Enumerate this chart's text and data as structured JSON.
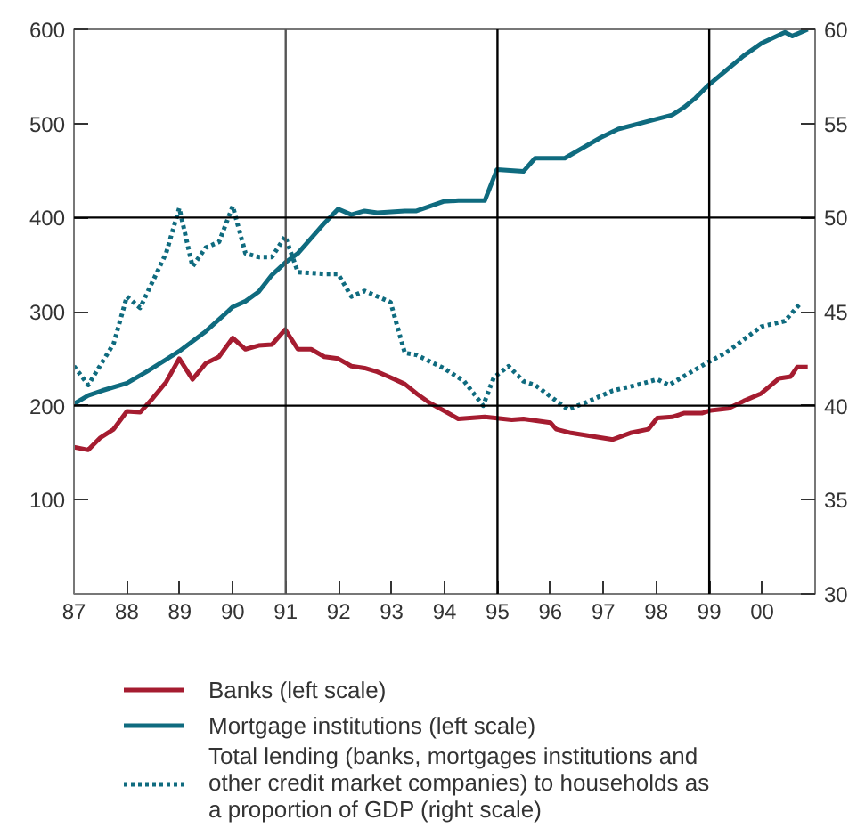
{
  "chart_data": {
    "type": "line",
    "xlim": [
      1987,
      2001
    ],
    "ylim": [
      0,
      600
    ],
    "y2lim": [
      30,
      60
    ],
    "xticks": [
      {
        "value": 1987,
        "label": "87"
      },
      {
        "value": 1988,
        "label": "88"
      },
      {
        "value": 1989,
        "label": "89"
      },
      {
        "value": 1990,
        "label": "90"
      },
      {
        "value": 1991,
        "label": "91"
      },
      {
        "value": 1992,
        "label": "92"
      },
      {
        "value": 1993,
        "label": "93"
      },
      {
        "value": 1994,
        "label": "94"
      },
      {
        "value": 1995,
        "label": "95"
      },
      {
        "value": 1996,
        "label": "96"
      },
      {
        "value": 1997,
        "label": "97"
      },
      {
        "value": 1998,
        "label": "98"
      },
      {
        "value": 1999,
        "label": "99"
      },
      {
        "value": 2000,
        "label": "00"
      }
    ],
    "yticks": [
      100,
      200,
      300,
      400,
      500,
      600
    ],
    "y2ticks": [
      30,
      35,
      40,
      45,
      50,
      55,
      60
    ],
    "grid": false,
    "legend": "bottom",
    "ref_lines": [
      {
        "axis": "x",
        "value": 1991,
        "color": "#555555"
      },
      {
        "axis": "x",
        "value": 1995,
        "color": "#000000"
      },
      {
        "axis": "x",
        "value": 1999,
        "color": "#000000"
      },
      {
        "axis": "y",
        "value": 200,
        "color": "#000000"
      },
      {
        "axis": "y",
        "value": 400,
        "color": "#000000"
      }
    ],
    "series": [
      {
        "name": "Banks (left scale)",
        "color": "#a51c30",
        "line_style": "solid",
        "x": [
          1987.0,
          1987.27,
          1987.5,
          1987.75,
          1988.0,
          1988.25,
          1988.49,
          1988.74,
          1988.99,
          1989.24,
          1989.49,
          1989.74,
          1990.0,
          1990.24,
          1990.49,
          1990.74,
          1990.99,
          1991.23,
          1991.48,
          1991.73,
          1991.99,
          1992.24,
          1992.49,
          1992.73,
          1992.98,
          1993.25,
          1993.47,
          1993.72,
          1993.98,
          1994.26,
          1994.76,
          1995.27,
          1995.49,
          1996.0,
          1996.11,
          1996.39,
          1996.73,
          1997.18,
          1997.51,
          1997.85,
          1998.02,
          1998.3,
          1998.52,
          1998.86,
          1999.03,
          1999.36,
          1999.65,
          1999.98,
          2000.32,
          2000.54,
          2000.66,
          2000.86
        ],
        "values": [
          156,
          153,
          166,
          175,
          194,
          193,
          208,
          225,
          250,
          228,
          245,
          252,
          272,
          260,
          264,
          265,
          281,
          260,
          260,
          252,
          250,
          242,
          240,
          236,
          230,
          223,
          213,
          203,
          195,
          186,
          188,
          185,
          186,
          182,
          175,
          171,
          168,
          164,
          171,
          175,
          187,
          188,
          192,
          192,
          195,
          197,
          205,
          213,
          229,
          231,
          241,
          241
        ]
      },
      {
        "name": "Mortgage institutions (left scale)",
        "color": "#0f6b7f",
        "line_style": "solid",
        "x": [
          1987.0,
          1987.27,
          1987.53,
          1988.0,
          1988.37,
          1988.74,
          1988.99,
          1989.49,
          1990.0,
          1990.24,
          1990.49,
          1990.74,
          1990.99,
          1991.23,
          1991.48,
          1991.73,
          1991.99,
          1992.24,
          1992.49,
          1992.73,
          1993.25,
          1993.47,
          1993.98,
          1994.26,
          1994.76,
          1994.99,
          1995.49,
          1995.71,
          1996.27,
          1996.95,
          1997.28,
          1997.96,
          1998.3,
          1998.52,
          1998.74,
          1998.97,
          1999.31,
          1999.65,
          1999.98,
          2000.43,
          2000.57,
          2000.86
        ],
        "values": [
          202,
          211,
          216,
          224,
          236,
          249,
          258,
          279,
          305,
          311,
          321,
          339,
          352,
          362,
          378,
          394,
          409,
          403,
          407,
          405,
          407,
          407,
          417,
          418,
          418,
          451,
          449,
          463,
          463,
          485,
          494,
          504,
          509,
          517,
          527,
          540,
          556,
          572,
          585,
          597,
          593,
          600
        ]
      },
      {
        "name": "Total lending (banks, mortgages institutions and other credit market companies) to households as a proportion of GDP (right scale)",
        "color": "#0f6b7f",
        "line_style": "dotted",
        "axis": "y2",
        "x": [
          1987.0,
          1987.27,
          1987.75,
          1988.0,
          1988.25,
          1988.74,
          1988.99,
          1989.24,
          1989.49,
          1989.74,
          1990.0,
          1990.24,
          1990.49,
          1990.74,
          1990.99,
          1991.23,
          1991.73,
          1991.99,
          1992.24,
          1992.49,
          1992.98,
          1993.25,
          1993.47,
          1993.98,
          1994.37,
          1994.73,
          1994.93,
          1995.21,
          1995.49,
          1995.71,
          1996.33,
          1996.61,
          1997.18,
          1997.63,
          1998.02,
          1998.24,
          1998.97,
          1999.31,
          1999.98,
          2000.43,
          2000.74
        ],
        "values": [
          42.1,
          41.1,
          43.3,
          45.8,
          45.2,
          48.1,
          50.5,
          47.4,
          48.4,
          48.7,
          50.6,
          48.1,
          47.9,
          47.9,
          49.0,
          47.1,
          47.0,
          47.0,
          45.8,
          46.1,
          45.5,
          42.8,
          42.7,
          42.0,
          41.3,
          40.0,
          41.5,
          42.1,
          41.3,
          41.1,
          39.8,
          40.1,
          40.8,
          41.1,
          41.4,
          41.1,
          42.3,
          42.8,
          44.2,
          44.5,
          45.5
        ]
      }
    ]
  }
}
